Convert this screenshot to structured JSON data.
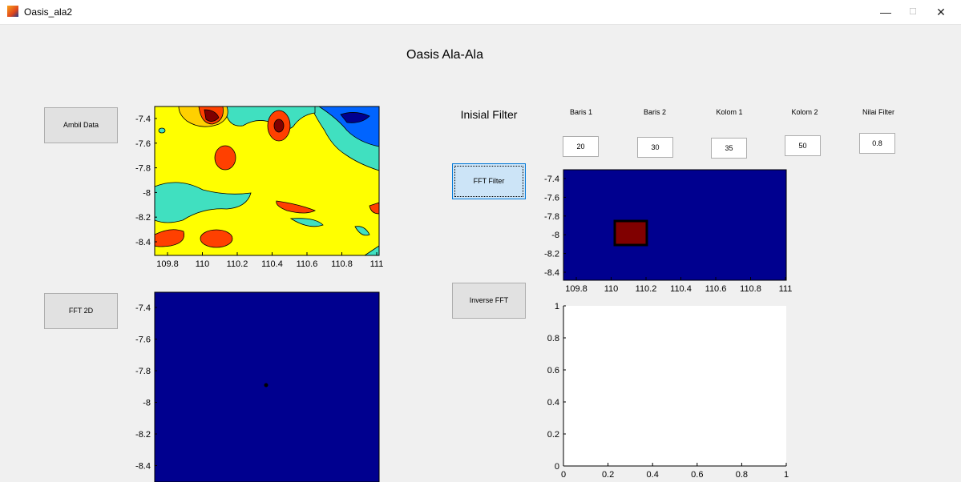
{
  "window": {
    "title": "Oasis_ala2",
    "controls": {
      "minimize": "—",
      "maximize": "☐",
      "close": "✕"
    }
  },
  "app_title": "Oasis Ala-Ala",
  "buttons": {
    "ambil_data": "Ambil Data",
    "fft_2d": "FFT 2D",
    "fft_filter": "FFT Filter",
    "inverse_fft": "Inverse FFT"
  },
  "filter": {
    "heading": "Inisial Filter",
    "fields": [
      {
        "label": "Baris 1",
        "value": "20"
      },
      {
        "label": "Baris 2",
        "value": "30"
      },
      {
        "label": "Kolom 1",
        "value": "35"
      },
      {
        "label": "Kolom 2",
        "value": "50"
      },
      {
        "label": "Nilai Filter",
        "value": "0.8"
      }
    ]
  },
  "axes": {
    "contour": {
      "y_ticks": [
        "-7.4",
        "-7.6",
        "-7.8",
        "-8",
        "-8.2",
        "-8.4"
      ],
      "x_ticks": [
        "109.8",
        "110",
        "110.2",
        "110.4",
        "110.6",
        "110.8",
        "111"
      ]
    },
    "fft2d": {
      "y_ticks": [
        "-7.4",
        "-7.6",
        "-7.8",
        "-8",
        "-8.2",
        "-8.4"
      ]
    },
    "fft_filter": {
      "y_ticks": [
        "-7.4",
        "-7.6",
        "-7.8",
        "-8",
        "-8.2",
        "-8.4"
      ],
      "x_ticks": [
        "109.8",
        "110",
        "110.2",
        "110.4",
        "110.6",
        "110.8",
        "111"
      ]
    },
    "inverse": {
      "y_ticks": [
        "1",
        "0.8",
        "0.6",
        "0.4",
        "0.2",
        "0"
      ],
      "x_ticks": [
        "0",
        "0.2",
        "0.4",
        "0.6",
        "0.8",
        "1"
      ]
    }
  },
  "colors": {
    "navy": "#00008f",
    "dark_red": "#800000",
    "yellow": "#ffff00",
    "cyan": "#40e0c0",
    "blue": "#0060ff",
    "orange": "#ff4000"
  }
}
